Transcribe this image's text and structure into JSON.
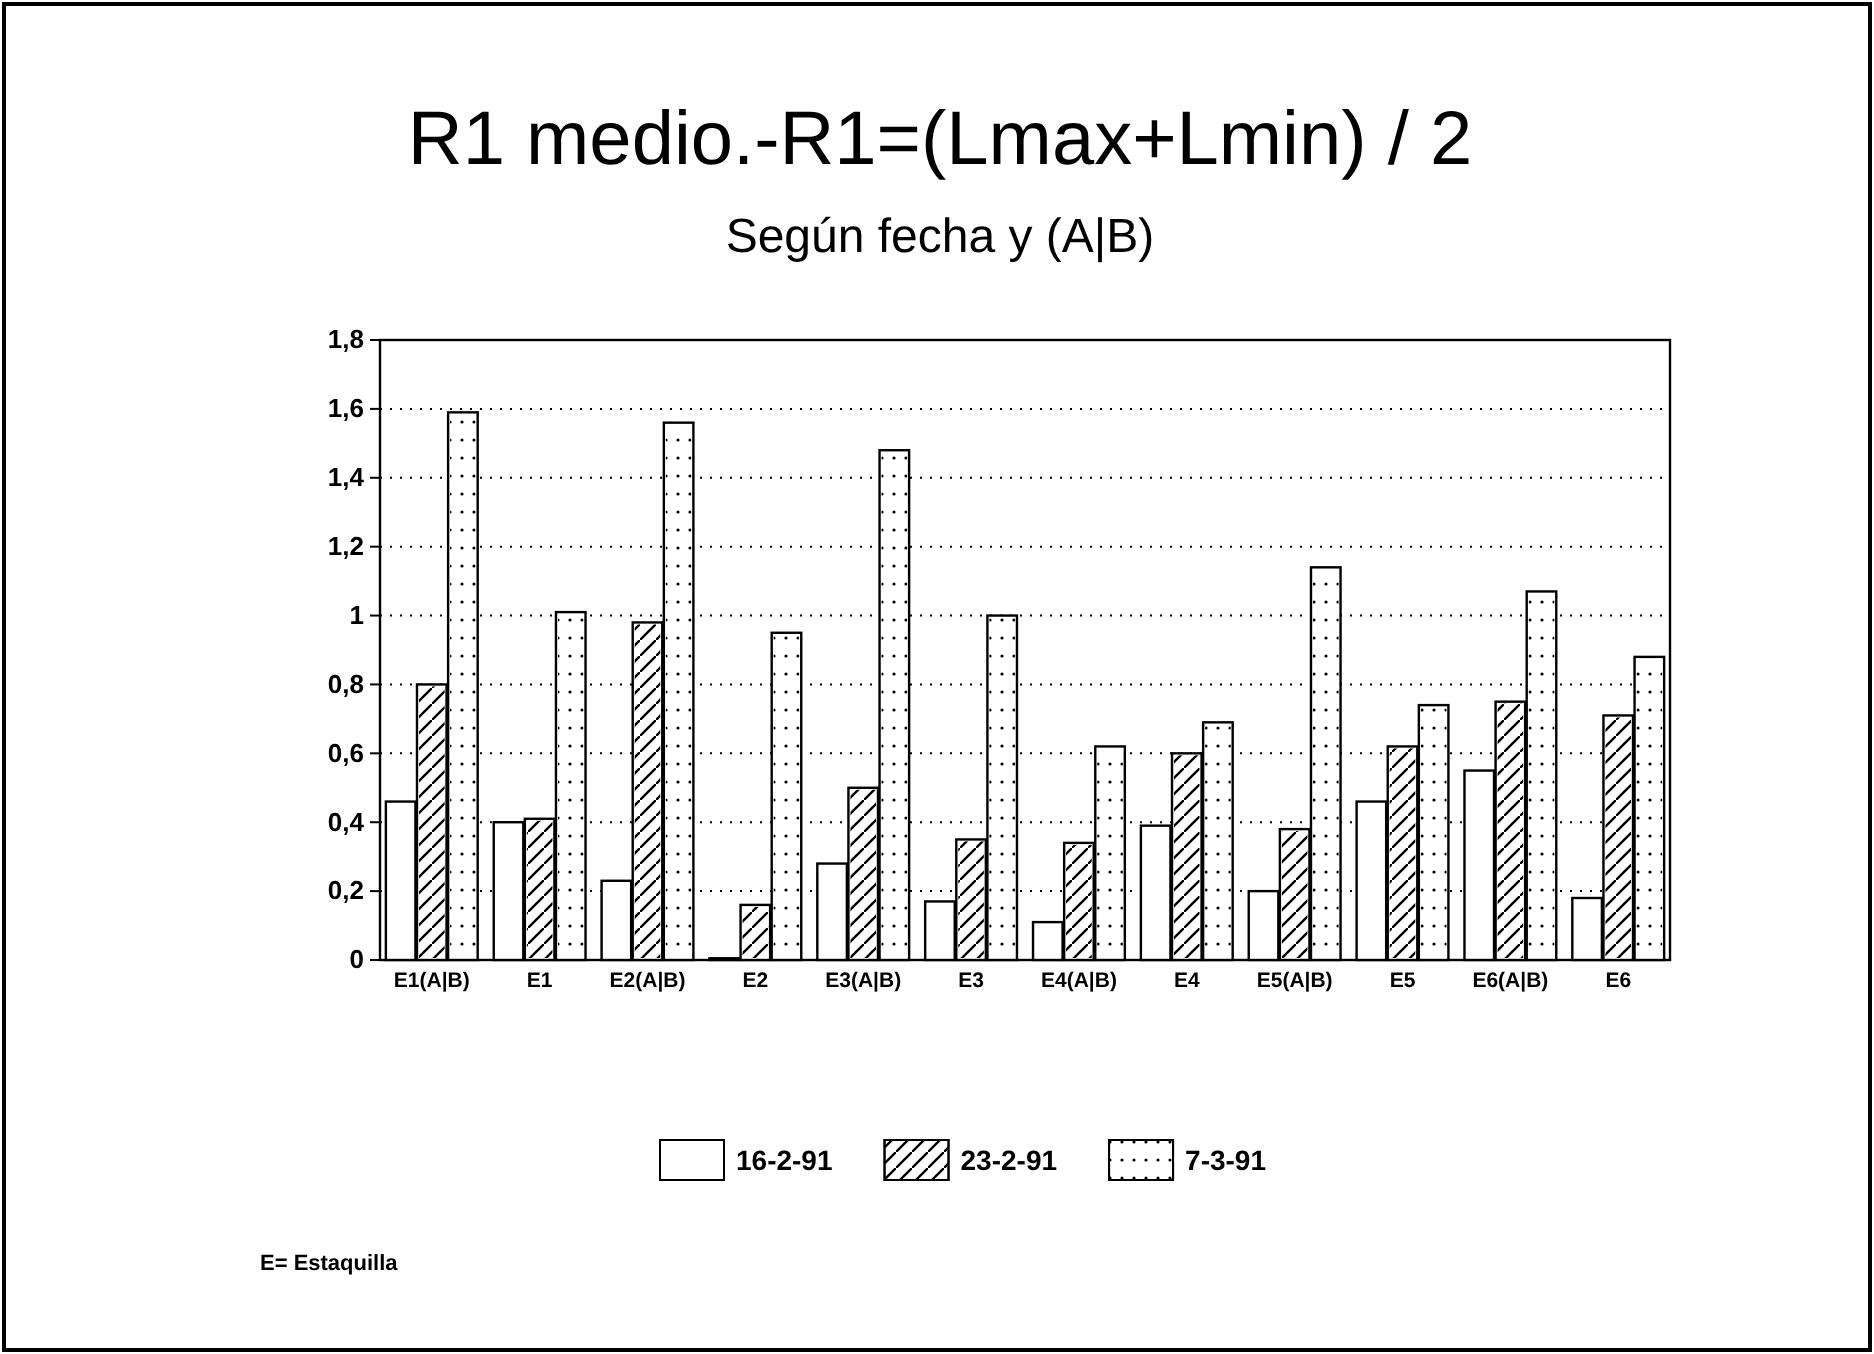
{
  "chart_data": {
    "type": "bar",
    "title": "R1 medio.-R1=(Lmax+Lmin) / 2",
    "subtitle": "Según fecha y (A|B)",
    "categories": [
      "E1(A|B)",
      "E1",
      "E2(A|B)",
      "E2",
      "E3(A|B)",
      "E3",
      "E4(A|B)",
      "E4",
      "E5(A|B)",
      "E5",
      "E6(A|B)",
      "E6"
    ],
    "series": [
      {
        "name": "16-2-91",
        "color": "#ffffff",
        "values": [
          0.46,
          0.4,
          0.23,
          0.005,
          0.28,
          0.17,
          0.11,
          0.39,
          0.2,
          0.46,
          0.55,
          0.18
        ]
      },
      {
        "name": "23-2-91",
        "color": "#ffffff",
        "values": [
          0.8,
          0.41,
          0.98,
          0.16,
          0.5,
          0.35,
          0.34,
          0.6,
          0.38,
          0.62,
          0.75,
          0.71
        ]
      },
      {
        "name": "7-3-91",
        "color": "#ffffff",
        "values": [
          1.59,
          1.01,
          1.56,
          0.95,
          1.48,
          1.0,
          0.62,
          0.69,
          1.14,
          0.74,
          1.07,
          0.88
        ]
      }
    ],
    "ylim": [
      0,
      1.8
    ],
    "yticks": [
      {
        "value": 0,
        "label": "0"
      },
      {
        "value": 0.2,
        "label": "0,2"
      },
      {
        "value": 0.4,
        "label": "0,4"
      },
      {
        "value": 0.6,
        "label": "0,6"
      },
      {
        "value": 0.8,
        "label": "0,8"
      },
      {
        "value": 1,
        "label": "1"
      },
      {
        "value": 1.2,
        "label": "1,2"
      },
      {
        "value": 1.4,
        "label": "1,4"
      },
      {
        "value": 1.6,
        "label": "1,6"
      },
      {
        "value": 1.8,
        "label": "1,8"
      }
    ],
    "grid": "y",
    "legend": "bottom",
    "annotations": [
      "E= Estaquilla"
    ]
  }
}
